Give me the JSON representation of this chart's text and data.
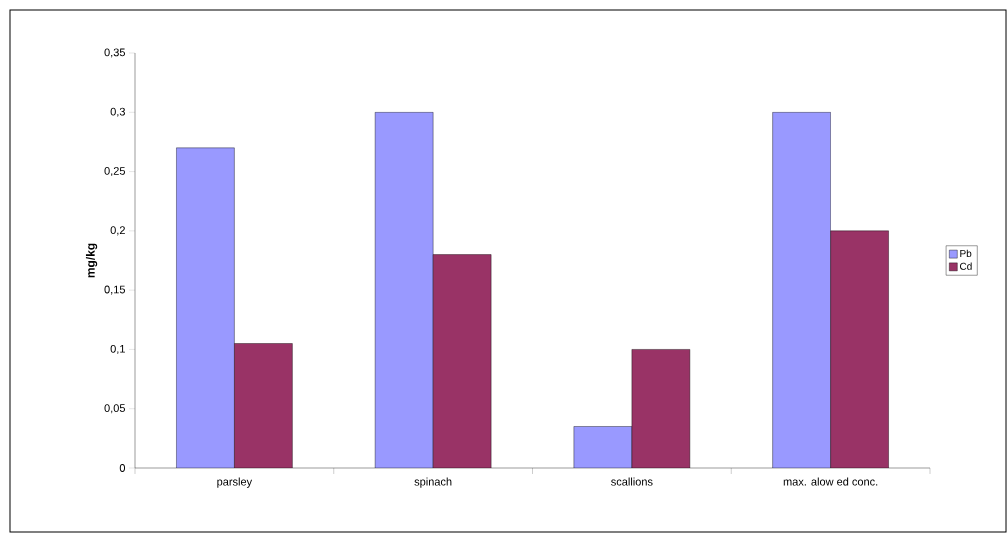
{
  "chart_data": {
    "type": "bar",
    "ylabel": "mg/kg",
    "categories": [
      "parsley",
      "spinach",
      "scallions",
      "max. alow ed conc."
    ],
    "series": [
      {
        "name": "Pb",
        "color": "#9999ff",
        "values": [
          0.27,
          0.3,
          0.035,
          0.3
        ]
      },
      {
        "name": "Cd",
        "color": "#993366",
        "values": [
          0.105,
          0.18,
          0.1,
          0.2
        ]
      }
    ],
    "ylim": [
      0,
      0.35
    ],
    "yticks": [
      0,
      {
        "value": 0.05,
        "label": "0,05"
      },
      {
        "value": 0.1,
        "label": "0,1"
      },
      {
        "value": 0.15,
        "label": "0,15"
      },
      {
        "value": 0.2,
        "label": "0,2"
      },
      {
        "value": 0.25,
        "label": "0,25"
      },
      {
        "value": 0.3,
        "label": "0,3"
      },
      {
        "value": 0.35,
        "label": "0,35"
      }
    ],
    "legend": "right"
  }
}
